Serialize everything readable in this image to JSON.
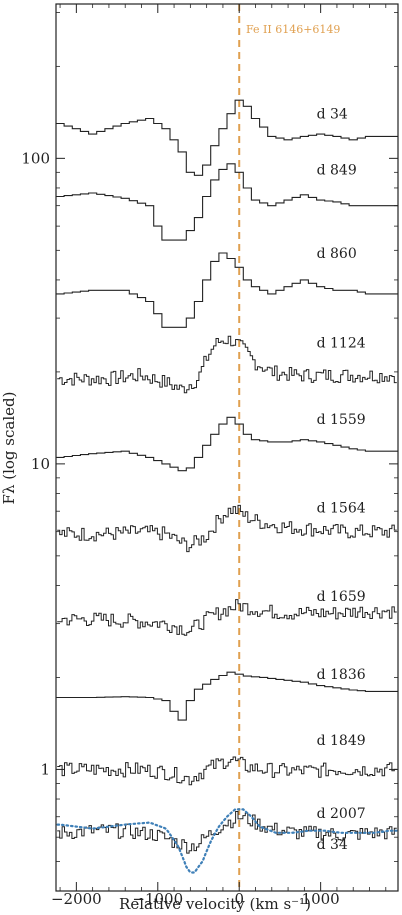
{
  "chart_data": {
    "type": "line",
    "title": "",
    "xlabel": "Relative velocity (km s⁻¹)",
    "ylabel": "Fλ (log scaled)",
    "xlim": [
      -2250,
      1950
    ],
    "ylim": [
      0.4,
      320
    ],
    "y_scale": "log",
    "x_ticks": [
      -2000,
      -1000,
      0,
      1000
    ],
    "x_tick_labels": [
      "−2000",
      "−1000",
      "0",
      "1000"
    ],
    "y_ticks": [
      1,
      10,
      100
    ],
    "y_tick_labels": [
      "1",
      "10",
      "100"
    ],
    "grid": false,
    "reference_line": {
      "x": 0,
      "label": "Fe II 6146+6149",
      "color": "#e0a050"
    },
    "series": [
      {
        "name": "d 34",
        "base": 140,
        "style": "step",
        "color": "#222222",
        "label_x": 950,
        "x": [
          -2200,
          -1800,
          -1400,
          -1100,
          -900,
          -700,
          -600,
          -500,
          -400,
          -300,
          -200,
          -100,
          0,
          100,
          200,
          400,
          600,
          800,
          1000,
          1200,
          1400,
          1600,
          1800
        ],
        "y": [
          130,
          120,
          130,
          135,
          125,
          105,
          90,
          88,
          95,
          110,
          125,
          140,
          155,
          148,
          135,
          118,
          115,
          118,
          120,
          118,
          115,
          118,
          118
        ]
      },
      {
        "name": "d 849",
        "base": 92,
        "style": "step",
        "color": "#222222",
        "label_x": 950,
        "x": [
          -2200,
          -1800,
          -1400,
          -1100,
          -1000,
          -900,
          -700,
          -600,
          -500,
          -400,
          -300,
          -200,
          -100,
          0,
          100,
          200,
          400,
          600,
          800,
          1000,
          1200,
          1400,
          1600,
          1800
        ],
        "y": [
          75,
          77,
          74,
          70,
          60,
          54,
          54,
          58,
          64,
          75,
          85,
          92,
          96,
          90,
          80,
          73,
          70,
          73,
          76,
          73,
          72,
          70,
          70,
          70
        ]
      },
      {
        "name": "d 860",
        "base": 49,
        "style": "step",
        "color": "#222222",
        "label_x": 950,
        "x": [
          -2200,
          -1800,
          -1400,
          -1100,
          -1000,
          -900,
          -700,
          -600,
          -500,
          -400,
          -300,
          -200,
          -100,
          0,
          100,
          200,
          400,
          600,
          800,
          1000,
          1200,
          1400,
          1600,
          1800
        ],
        "y": [
          36,
          37,
          37,
          34,
          31,
          28,
          28,
          30,
          34,
          40,
          46,
          49,
          47,
          44,
          40,
          38,
          36,
          38,
          40,
          38,
          37,
          37,
          36,
          36
        ]
      },
      {
        "name": "d 1124",
        "base": 25,
        "style": "noisy",
        "color": "#222222",
        "label_x": 950,
        "x": [
          -2200,
          -1600,
          -1200,
          -900,
          -700,
          -500,
          -400,
          -300,
          -200,
          -100,
          0,
          100,
          200,
          400,
          700,
          1000,
          1300,
          1600,
          1850
        ],
        "y": [
          19,
          19,
          19.5,
          18.5,
          17.5,
          19,
          22,
          24.5,
          25.5,
          25.5,
          24.5,
          23,
          21.5,
          20,
          19.5,
          19.5,
          19.5,
          19.5,
          19.5
        ]
      },
      {
        "name": "d 1559",
        "base": 14,
        "style": "step",
        "color": "#222222",
        "label_x": 950,
        "x": [
          -2200,
          -1800,
          -1400,
          -1100,
          -900,
          -700,
          -600,
          -500,
          -400,
          -300,
          -200,
          -100,
          0,
          100,
          200,
          400,
          600,
          800,
          1000,
          1200,
          1400,
          1600,
          1800
        ],
        "y": [
          10.5,
          10.8,
          11,
          10.5,
          10,
          9.5,
          9.7,
          10.5,
          11.5,
          12.5,
          13.5,
          14.2,
          13.5,
          12.5,
          12,
          11.8,
          11.8,
          12,
          11.8,
          11.5,
          11.2,
          11,
          11
        ]
      },
      {
        "name": "d 1564",
        "base": 7.2,
        "style": "noisy",
        "color": "#222222",
        "label_x": 950,
        "x": [
          -2200,
          -1600,
          -1200,
          -900,
          -700,
          -600,
          -400,
          -300,
          -200,
          -100,
          0,
          100,
          300,
          600,
          1000,
          1300,
          1600,
          1850
        ],
        "y": [
          5.9,
          5.9,
          6.0,
          5.9,
          5.5,
          5.4,
          5.8,
          6.3,
          6.8,
          7.1,
          7.0,
          6.7,
          6.4,
          6.2,
          6.1,
          6.0,
          6.0,
          6.0
        ]
      },
      {
        "name": "d 1659",
        "base": 3.7,
        "style": "noisy",
        "color": "#222222",
        "label_x": 950,
        "x": [
          -2200,
          -1700,
          -1200,
          -900,
          -700,
          -600,
          -400,
          -200,
          0,
          100,
          300,
          600,
          900,
          1200,
          1500,
          1850
        ],
        "y": [
          3.1,
          3.1,
          3.05,
          3.0,
          2.9,
          2.85,
          3.1,
          3.3,
          3.45,
          3.4,
          3.3,
          3.25,
          3.25,
          3.25,
          3.3,
          3.3
        ]
      },
      {
        "name": "d 1836",
        "base": 2.05,
        "style": "step",
        "color": "#222222",
        "label_x": 950,
        "x": [
          -2200,
          -1800,
          -1400,
          -1100,
          -900,
          -800,
          -750,
          -700,
          -600,
          -500,
          -400,
          -300,
          -200,
          -100,
          0,
          100,
          300,
          500,
          800,
          1000,
          1200,
          1400,
          1600,
          1800
        ],
        "y": [
          1.72,
          1.72,
          1.73,
          1.72,
          1.68,
          1.55,
          1.42,
          1.45,
          1.68,
          1.83,
          1.9,
          1.97,
          2.03,
          2.08,
          2.05,
          2.02,
          2.0,
          1.97,
          1.93,
          1.88,
          1.85,
          1.82,
          1.8,
          1.8
        ]
      },
      {
        "name": "d 1849",
        "base": 1.25,
        "style": "noisy",
        "color": "#222222",
        "label_x": 950,
        "x": [
          -2200,
          -1700,
          -1200,
          -900,
          -700,
          -600,
          -400,
          -200,
          -100,
          0,
          100,
          300,
          600,
          900,
          1200,
          1500,
          1850
        ],
        "y": [
          1.0,
          1.0,
          1.0,
          0.98,
          0.95,
          0.93,
          1.0,
          1.06,
          1.08,
          1.05,
          1.02,
          1.0,
          0.99,
          0.99,
          1.0,
          1.0,
          1.0
        ]
      },
      {
        "name": "d 2007",
        "base": 0.72,
        "style": "noisy",
        "color": "#222222",
        "label_x": 950,
        "x": [
          -2200,
          -1800,
          -1400,
          -1000,
          -800,
          -600,
          -500,
          -400,
          -300,
          -200,
          -100,
          0,
          100,
          200,
          400,
          700,
          1000,
          1300,
          1600,
          1850
        ],
        "y": [
          0.62,
          0.63,
          0.63,
          0.61,
          0.58,
          0.56,
          0.57,
          0.6,
          0.63,
          0.66,
          0.68,
          0.7,
          0.69,
          0.67,
          0.64,
          0.62,
          0.62,
          0.61,
          0.62,
          0.62
        ]
      },
      {
        "name": "d 34",
        "base": 0.57,
        "style": "dotted",
        "color": "#3f80b8",
        "label_x": 950,
        "x": [
          -2200,
          -1800,
          -1400,
          -1100,
          -900,
          -750,
          -650,
          -600,
          -550,
          -450,
          -350,
          -250,
          -150,
          -50,
          50,
          150,
          250,
          450,
          650,
          850,
          1050,
          1250,
          1450,
          1650,
          1850
        ],
        "y": [
          0.66,
          0.64,
          0.66,
          0.67,
          0.64,
          0.56,
          0.48,
          0.46,
          0.46,
          0.5,
          0.58,
          0.65,
          0.7,
          0.74,
          0.74,
          0.7,
          0.65,
          0.62,
          0.62,
          0.63,
          0.63,
          0.62,
          0.62,
          0.62,
          0.63
        ]
      }
    ]
  }
}
